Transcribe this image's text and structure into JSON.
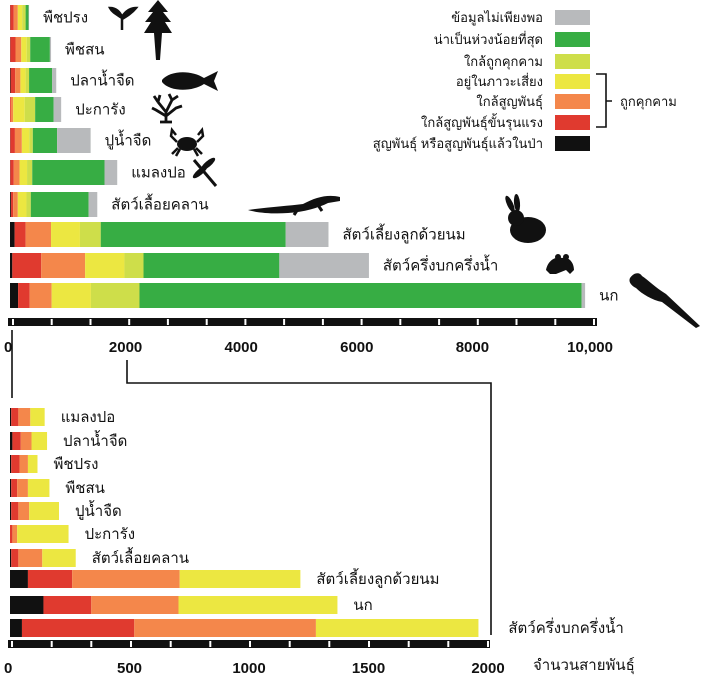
{
  "colors": {
    "ex": "#111111",
    "cr": "#e03a2f",
    "en": "#f4874b",
    "vu": "#ece741",
    "nt": "#cede4a",
    "lc": "#37ad44",
    "dd": "#b8babc"
  },
  "legend": {
    "items": [
      {
        "key": "dd",
        "label": "ข้อมูลไม่เพียงพอ"
      },
      {
        "key": "lc",
        "label": "น่าเป็นห่วงน้อยที่สุด"
      },
      {
        "key": "nt",
        "label": "ใกล้ถูกคุกคาม"
      },
      {
        "key": "vu",
        "label": "อยู่ในภาวะเสี่ยง"
      },
      {
        "key": "en",
        "label": "ใกล้สูญพันธุ์"
      },
      {
        "key": "cr",
        "label": "ใกล้สูญพันธุ์ขั้นรุนแรง"
      },
      {
        "key": "ex",
        "label": "สูญพันธุ์ หรือสูญพันธุ์แล้วในป่า"
      }
    ],
    "group_label": "ถูกคุกคาม"
  },
  "chart_data": [
    {
      "type": "bar",
      "orientation": "horizontal",
      "stacked": true,
      "stack_order": [
        "ex",
        "cr",
        "en",
        "vu",
        "nt",
        "lc",
        "dd"
      ],
      "xlim": [
        0,
        10000
      ],
      "ticks": [
        "0",
        "2000",
        "4000",
        "6000",
        "8000",
        "10,000"
      ],
      "tick_values": [
        0,
        2000,
        4000,
        6000,
        8000,
        10000
      ],
      "categories": [
        {
          "name": "พืชปรง",
          "icon": "cycad-icon",
          "values": {
            "ex": 5,
            "cr": 60,
            "en": 70,
            "vu": 75,
            "nt": 60,
            "lc": 50,
            "dd": 10
          }
        },
        {
          "name": "พืชสน",
          "icon": "conifer-icon",
          "values": {
            "ex": 5,
            "cr": 90,
            "en": 100,
            "vu": 95,
            "nt": 60,
            "lc": 340,
            "dd": 20
          }
        },
        {
          "name": "ปลาน้ำจืด",
          "icon": "fish-icon",
          "values": {
            "ex": 10,
            "cr": 80,
            "en": 90,
            "vu": 90,
            "nt": 60,
            "lc": 400,
            "dd": 70
          }
        },
        {
          "name": "ปะการัง",
          "icon": "coral-icon",
          "values": {
            "ex": 0,
            "cr": 15,
            "en": 40,
            "vu": 200,
            "nt": 180,
            "lc": 320,
            "dd": 130
          }
        },
        {
          "name": "ปูน้ำจืด",
          "icon": "crab-icon",
          "values": {
            "ex": 5,
            "cr": 80,
            "en": 120,
            "vu": 130,
            "nt": 60,
            "lc": 420,
            "dd": 580
          }
        },
        {
          "name": "แมลงปอ",
          "icon": "dragonfly-icon",
          "values": {
            "ex": 5,
            "cr": 60,
            "en": 100,
            "vu": 130,
            "nt": 90,
            "lc": 1250,
            "dd": 220
          }
        },
        {
          "name": "สัตว์เลื้อยคลาน",
          "icon": "lizard-icon",
          "values": {
            "ex": 15,
            "cr": 40,
            "en": 80,
            "vu": 150,
            "nt": 75,
            "lc": 1000,
            "dd": 150
          }
        },
        {
          "name": "สัตว์เลี้ยงลูกด้วยนม",
          "icon": "rabbit-icon",
          "values": {
            "ex": 80,
            "cr": 190,
            "en": 440,
            "vu": 500,
            "nt": 360,
            "lc": 3200,
            "dd": 740
          }
        },
        {
          "name": "สัตว์ครึ่งบกครึ่งน้ำ",
          "icon": "frog-icon",
          "values": {
            "ex": 40,
            "cr": 500,
            "en": 760,
            "vu": 680,
            "nt": 330,
            "lc": 2350,
            "dd": 1550
          }
        },
        {
          "name": "นก",
          "icon": "parrot-icon",
          "values": {
            "ex": 140,
            "cr": 200,
            "en": 380,
            "vu": 680,
            "nt": 840,
            "lc": 7650,
            "dd": 60
          }
        }
      ]
    },
    {
      "type": "bar",
      "orientation": "horizontal",
      "stacked": true,
      "stack_order": [
        "ex",
        "cr",
        "en",
        "vu"
      ],
      "xlim": [
        0,
        2000
      ],
      "ticks": [
        "0",
        "500",
        "1000",
        "1500",
        "2000"
      ],
      "tick_values": [
        0,
        500,
        1000,
        1500,
        2000
      ],
      "xlabel": "จำนวนสายพันธุ์",
      "categories": [
        {
          "name": "แมลงปอ",
          "values": {
            "ex": 5,
            "cr": 30,
            "en": 50,
            "vu": 60
          }
        },
        {
          "name": "ปลาน้ำจืด",
          "values": {
            "ex": 10,
            "cr": 35,
            "en": 45,
            "vu": 65
          }
        },
        {
          "name": "พืชปรง",
          "values": {
            "ex": 5,
            "cr": 35,
            "en": 35,
            "vu": 40
          }
        },
        {
          "name": "พืชสน",
          "values": {
            "ex": 5,
            "cr": 25,
            "en": 45,
            "vu": 90
          }
        },
        {
          "name": "ปูน้ำจืด",
          "values": {
            "ex": 5,
            "cr": 30,
            "en": 45,
            "vu": 125
          }
        },
        {
          "name": "ปะการัง",
          "values": {
            "ex": 0,
            "cr": 10,
            "en": 20,
            "vu": 215
          }
        },
        {
          "name": "สัตว์เลื้อยคลาน",
          "values": {
            "ex": 5,
            "cr": 30,
            "en": 100,
            "vu": 140
          }
        },
        {
          "name": "สัตว์เลี้ยงลูกด้วยนม",
          "values": {
            "ex": 75,
            "cr": 185,
            "en": 450,
            "vu": 505
          }
        },
        {
          "name": "นก",
          "values": {
            "ex": 140,
            "cr": 200,
            "en": 365,
            "vu": 665
          }
        },
        {
          "name": "สัตว์ครึ่งบกครึ่งน้ำ",
          "values": {
            "ex": 50,
            "cr": 470,
            "en": 760,
            "vu": 680
          }
        }
      ]
    }
  ]
}
